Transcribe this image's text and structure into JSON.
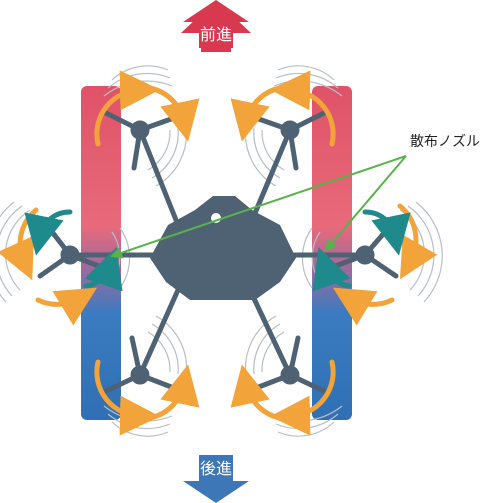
{
  "labels": {
    "forward": "前進",
    "backward": "後進",
    "spray_nozzle": "散布ノズル"
  },
  "colors": {
    "forward_arrow": "#d8394f",
    "backward_arrow": "#3d77b8",
    "drone_body": "#4e6273",
    "rotation_arrow": "#f2a33a",
    "teal_arrow": "#1e8a8c",
    "pointer_line": "#57b34a",
    "spray_top": "#e05268",
    "spray_bottom": "#2f6fb3"
  }
}
